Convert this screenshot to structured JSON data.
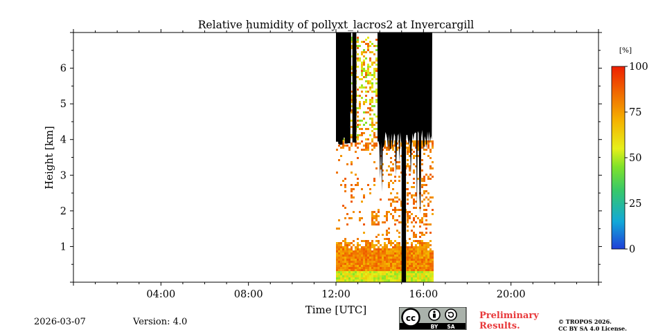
{
  "chart_data": {
    "type": "heatmap",
    "title": "Relative humidity of pollyxt_lacros2 at Invercargill",
    "xlabel": "Time [UTC]",
    "ylabel": "Height [km]",
    "xlim": [
      0,
      24
    ],
    "ylim": [
      0,
      7
    ],
    "x_ticks": [
      {
        "value": 4,
        "label": "04:00"
      },
      {
        "value": 8,
        "label": "08:00"
      },
      {
        "value": 12,
        "label": "12:00"
      },
      {
        "value": 16,
        "label": "16:00"
      },
      {
        "value": 20,
        "label": "20:00"
      }
    ],
    "y_ticks": [
      {
        "value": 1,
        "label": "1"
      },
      {
        "value": 2,
        "label": "2"
      },
      {
        "value": 3,
        "label": "3"
      },
      {
        "value": 4,
        "label": "4"
      },
      {
        "value": 5,
        "label": "5"
      },
      {
        "value": 6,
        "label": "6"
      }
    ],
    "data_time_range": [
      12.0,
      16.4
    ],
    "colorbar": {
      "unit": "[%]",
      "range": [
        0,
        100
      ],
      "ticks": [
        {
          "value": 0,
          "label": "0"
        },
        {
          "value": 25,
          "label": "25"
        },
        {
          "value": 50,
          "label": "50"
        },
        {
          "value": 75,
          "label": "75"
        },
        {
          "value": 100,
          "label": "100"
        }
      ],
      "colors": [
        "#1f3fd8",
        "#12a8d8",
        "#37c86a",
        "#7fe22a",
        "#e6ef1a",
        "#f5b400",
        "#f06c00",
        "#ee1f00"
      ]
    },
    "masked_color": "#000000",
    "layers": [
      {
        "name": "near-surface",
        "height_km": [
          0.0,
          0.35
        ],
        "time": [
          12.0,
          16.4
        ],
        "rh_percent": 55
      },
      {
        "name": "boundary-layer",
        "height_km": [
          0.35,
          1.2
        ],
        "time": [
          12.0,
          16.4
        ],
        "rh_percent": 80
      },
      {
        "name": "scattered-upper",
        "height_km": [
          1.2,
          4.0
        ],
        "time": [
          12.0,
          16.4
        ],
        "rh_percent": 82
      },
      {
        "name": "elevated-moist-patch",
        "height_km": [
          1.6,
          2.0
        ],
        "time": [
          13.6,
          13.9
        ],
        "rh_percent": 80
      },
      {
        "name": "upper-mixed",
        "height_km": [
          4.0,
          6.9
        ],
        "time": [
          12.0,
          13.9
        ],
        "rh_percent": 65
      }
    ],
    "masked_regions": [
      {
        "name": "cloud-mask-left",
        "height_km": [
          4.0,
          7.0
        ],
        "time": [
          12.0,
          12.9
        ]
      },
      {
        "name": "cloud-mask-main",
        "height_km": [
          3.3,
          7.0
        ],
        "time": [
          13.9,
          16.4
        ]
      },
      {
        "name": "precip-column",
        "height_km": [
          0.0,
          7.0
        ],
        "time": [
          15.0,
          15.2
        ]
      }
    ]
  },
  "footer": {
    "date": "2026-03-07",
    "version": "Version: 4.0",
    "preliminary_line1": "Preliminary",
    "preliminary_line2": "Results.",
    "copyright_line1": "© TROPOS 2026.",
    "copyright_line2": "CC BY SA 4.0 License.",
    "license_badge": {
      "cc": "cc",
      "by": "BY",
      "sa": "SA"
    }
  }
}
